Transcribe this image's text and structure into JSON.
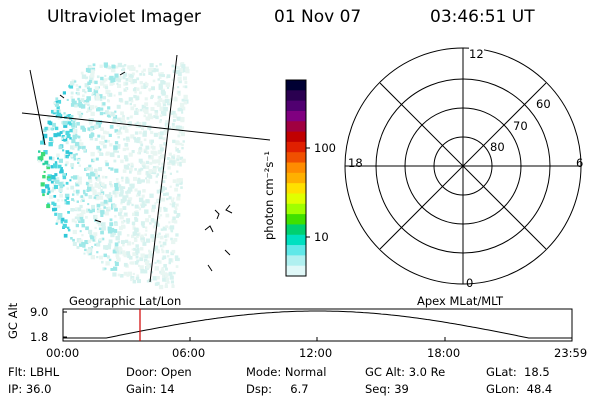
{
  "header": {
    "instrument": "Ultraviolet Imager",
    "date": "01 Nov 07",
    "time": "03:46:51 UT"
  },
  "colorbar": {
    "unit_label": "photon cm⁻²s⁻¹",
    "ticks": [
      "100",
      "10"
    ],
    "colors": [
      "#000033",
      "#2a0050",
      "#500070",
      "#800080",
      "#a00040",
      "#c00000",
      "#e02000",
      "#f05000",
      "#ff8c00",
      "#ffb000",
      "#ffe000",
      "#e0ff00",
      "#a0ff00",
      "#40e000",
      "#00d070",
      "#00e0c0",
      "#60e8e8",
      "#b0f0f0",
      "#e0f8f8"
    ]
  },
  "polar_plot": {
    "labels": {
      "top": "12",
      "left": "18",
      "right": "6",
      "bottom": "0"
    },
    "ring_labels": [
      "60",
      "70",
      "80"
    ]
  },
  "timeline": {
    "left_title": "Geographic Lat/Lon",
    "right_title": "Apex MLat/MLT",
    "y_axis_label": "GC Alt",
    "y_ticks": [
      "9.0",
      "1.8"
    ],
    "x_ticks": [
      "00:00",
      "06:00",
      "12:00",
      "18:00",
      "23:59"
    ],
    "marker_color": "#d00000"
  },
  "footer": {
    "flt": "Flt: LBHL",
    "door": "Door: Open",
    "mode": "Mode: Normal",
    "gc_alt": "GC Alt: 3.0 Re",
    "glat": "GLat:  18.5",
    "ip": "IP: 36.0",
    "gain": "Gain: 14",
    "dsp": "Dsp:     6.7",
    "seq": "Seq: 39",
    "glon": "GLon:  48.4"
  }
}
